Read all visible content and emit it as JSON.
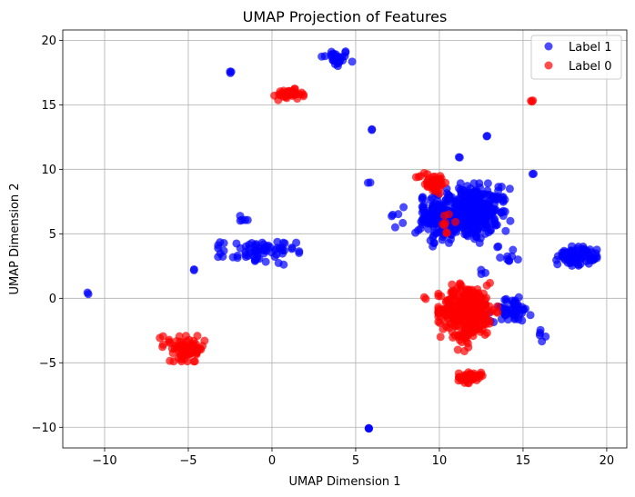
{
  "chart_data": {
    "type": "scatter",
    "title": "UMAP Projection of Features",
    "xlabel": "UMAP Dimension 1",
    "ylabel": "UMAP Dimension 2",
    "xlim": [
      -12.5,
      21.2
    ],
    "ylim": [
      -11.6,
      20.8
    ],
    "xticks": [
      -10,
      -5,
      0,
      5,
      10,
      15,
      20
    ],
    "yticks": [
      -10,
      -5,
      0,
      5,
      10,
      15,
      20
    ],
    "xtick_labels": [
      "−10",
      "−5",
      "0",
      "5",
      "10",
      "15",
      "20"
    ],
    "ytick_labels": [
      "−10",
      "−5",
      "0",
      "5",
      "10",
      "15",
      "20"
    ],
    "grid": true,
    "legend_position": "top-right",
    "series": [
      {
        "name": "Label 1",
        "color": "#0000ff",
        "clusters": [
          {
            "cx": 3.8,
            "cy": 18.6,
            "sx": 0.45,
            "sy": 0.35,
            "n": 30
          },
          {
            "cx": -2.5,
            "cy": 17.5,
            "sx": 0.06,
            "sy": 0.06,
            "n": 3
          },
          {
            "cx": 6.0,
            "cy": 13.1,
            "sx": 0.04,
            "sy": 0.04,
            "n": 2
          },
          {
            "cx": 12.9,
            "cy": 12.6,
            "sx": 0.05,
            "sy": 0.05,
            "n": 2
          },
          {
            "cx": 11.2,
            "cy": 11.0,
            "sx": 0.05,
            "sy": 0.05,
            "n": 2
          },
          {
            "cx": 15.6,
            "cy": 9.6,
            "sx": 0.05,
            "sy": 0.05,
            "n": 2
          },
          {
            "cx": 5.8,
            "cy": 8.9,
            "sx": 0.05,
            "sy": 0.05,
            "n": 2
          },
          {
            "cx": 11.4,
            "cy": 6.6,
            "sx": 1.1,
            "sy": 1.05,
            "n": 360
          },
          {
            "cx": 12.7,
            "cy": 6.9,
            "sx": 0.7,
            "sy": 0.8,
            "n": 80
          },
          {
            "cx": 9.6,
            "cy": 6.0,
            "sx": 0.5,
            "sy": 0.9,
            "n": 40
          },
          {
            "cx": 14.1,
            "cy": 3.4,
            "sx": 0.35,
            "sy": 0.35,
            "n": 10
          },
          {
            "cx": 7.6,
            "cy": 6.5,
            "sx": 0.25,
            "sy": 0.6,
            "n": 6
          },
          {
            "cx": 18.2,
            "cy": 3.3,
            "sx": 0.55,
            "sy": 0.35,
            "n": 90
          },
          {
            "cx": -0.8,
            "cy": 3.6,
            "sx": 1.1,
            "sy": 0.45,
            "n": 70
          },
          {
            "cx": -1.8,
            "cy": 6.1,
            "sx": 0.25,
            "sy": 0.2,
            "n": 5
          },
          {
            "cx": -4.7,
            "cy": 2.2,
            "sx": 0.05,
            "sy": 0.05,
            "n": 2
          },
          {
            "cx": -11.0,
            "cy": 0.4,
            "sx": 0.05,
            "sy": 0.05,
            "n": 2
          },
          {
            "cx": 14.3,
            "cy": -0.9,
            "sx": 0.6,
            "sy": 0.45,
            "n": 60
          },
          {
            "cx": 12.6,
            "cy": 2.0,
            "sx": 0.1,
            "sy": 0.1,
            "n": 3
          },
          {
            "cx": 16.3,
            "cy": -2.9,
            "sx": 0.25,
            "sy": 0.2,
            "n": 5
          },
          {
            "cx": 5.8,
            "cy": -10.1,
            "sx": 0.07,
            "sy": 0.07,
            "n": 3
          }
        ]
      },
      {
        "name": "Label 0",
        "color": "#ff0000",
        "clusters": [
          {
            "cx": 1.0,
            "cy": 15.8,
            "sx": 0.4,
            "sy": 0.2,
            "n": 35
          },
          {
            "cx": 15.5,
            "cy": 15.3,
            "sx": 0.05,
            "sy": 0.05,
            "n": 3
          },
          {
            "cx": 9.6,
            "cy": 9.0,
            "sx": 0.45,
            "sy": 0.4,
            "n": 45
          },
          {
            "cx": 10.3,
            "cy": 5.6,
            "sx": 0.3,
            "sy": 0.5,
            "n": 8
          },
          {
            "cx": 11.7,
            "cy": -0.9,
            "sx": 0.8,
            "sy": 0.95,
            "n": 320
          },
          {
            "cx": 11.4,
            "cy": -3.0,
            "sx": 0.35,
            "sy": 0.5,
            "n": 20
          },
          {
            "cx": 11.8,
            "cy": -6.1,
            "sx": 0.35,
            "sy": 0.22,
            "n": 40
          },
          {
            "cx": 9.2,
            "cy": 0.0,
            "sx": 0.05,
            "sy": 0.05,
            "n": 2
          },
          {
            "cx": -5.0,
            "cy": -3.9,
            "sx": 0.5,
            "sy": 0.45,
            "n": 70
          },
          {
            "cx": -6.5,
            "cy": -3.4,
            "sx": 0.35,
            "sy": 0.25,
            "n": 6
          }
        ]
      }
    ]
  }
}
